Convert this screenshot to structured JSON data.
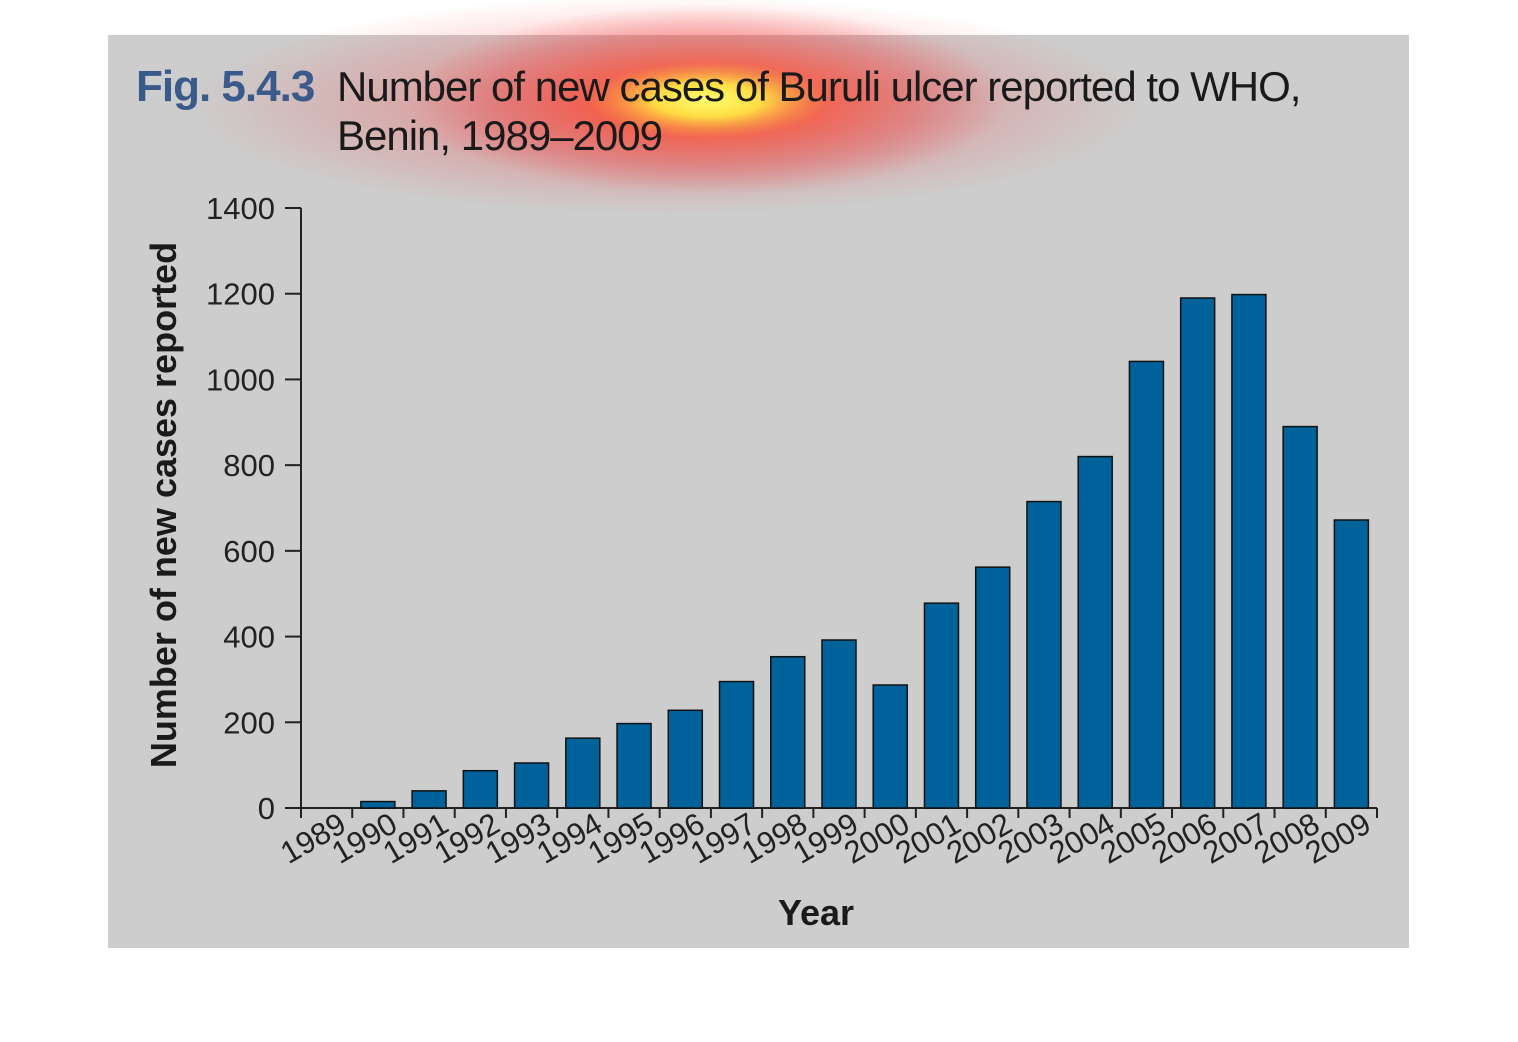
{
  "figure": {
    "number": "Fig. 5.4.3",
    "title": "Number of new cases of Buruli ulcer reported to WHO, Benin, 1989–2009"
  },
  "chart_data": {
    "type": "bar",
    "title": "Number of new cases of Buruli ulcer reported to WHO, Benin, 1989–2009",
    "xlabel": "Year",
    "ylabel": "Number of new cases reported",
    "categories": [
      "1989",
      "1990",
      "1991",
      "1992",
      "1993",
      "1994",
      "1995",
      "1996",
      "1997",
      "1998",
      "1999",
      "2000",
      "2001",
      "2002",
      "2003",
      "2004",
      "2005",
      "2006",
      "2007",
      "2008",
      "2009"
    ],
    "values": [
      0,
      15,
      40,
      87,
      105,
      163,
      197,
      228,
      295,
      353,
      392,
      287,
      478,
      562,
      715,
      820,
      1042,
      1190,
      1198,
      890,
      672
    ],
    "ylim": [
      0,
      1400
    ],
    "yticks": [
      0,
      200,
      400,
      600,
      800,
      1000,
      1200,
      1400
    ],
    "grid": false,
    "bar_color": "#00629b"
  }
}
